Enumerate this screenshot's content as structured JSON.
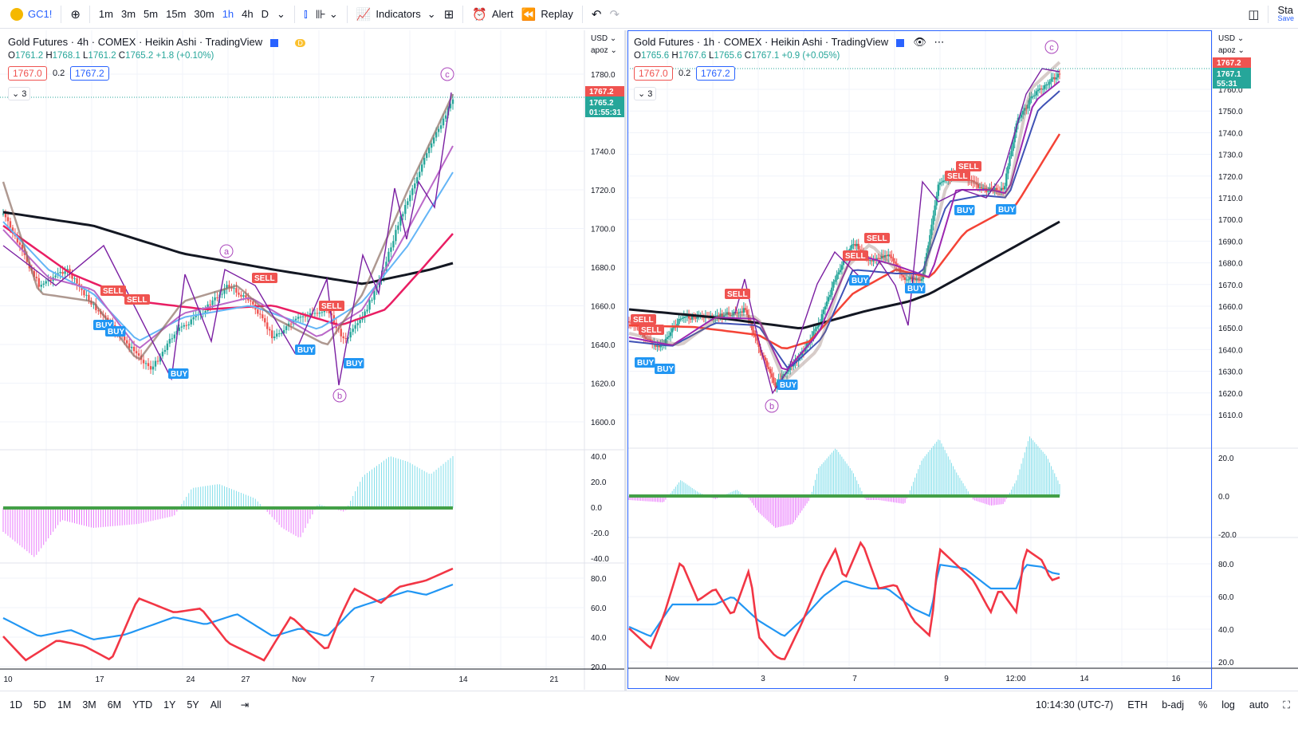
{
  "toolbar": {
    "symbol": "GC1!",
    "intervals": [
      "1m",
      "3m",
      "5m",
      "15m",
      "30m",
      "1h",
      "4h",
      "D"
    ],
    "active_interval": "1h",
    "indicators_label": "Indicators",
    "alert_label": "Alert",
    "replay_label": "Replay",
    "right_label": "Sta",
    "right_sub": "Save"
  },
  "left_chart": {
    "title": "Gold Futures · 4h · COMEX · Heikin Ashi · TradingView",
    "ohlc": {
      "o": "1761.2",
      "h": "1768.1",
      "l": "1761.2",
      "c": "1765.2",
      "chg": "+1.8 (+0.10%)"
    },
    "bid": "1767.0",
    "spread": "0.2",
    "ask": "1767.2",
    "collapse": "3",
    "currency": "USD",
    "scale_mode": "apoz",
    "price_ticks": [
      "1780.0",
      "1740.0",
      "1720.0",
      "1700.0",
      "1680.0",
      "1660.0",
      "1640.0",
      "1620.0",
      "1600.0"
    ],
    "price_tag": "1767.2",
    "last_tag": "1765.2",
    "countdown": "01:55:31",
    "osc_ticks": [
      "40.0",
      "20.0",
      "0.0",
      "-20.0",
      "-40.0"
    ],
    "rsi_ticks": [
      "80.0",
      "60.0",
      "40.0",
      "20.0"
    ],
    "time_ticks": [
      "10",
      "17",
      "24",
      "27",
      "Nov",
      "7",
      "14",
      "21"
    ],
    "wave_labels": [
      "a",
      "b",
      "c"
    ],
    "signal_labels": {
      "sell": "SELL",
      "buy": "BUY"
    }
  },
  "right_chart": {
    "title": "Gold Futures · 1h · COMEX · Heikin Ashi · TradingView",
    "ohlc": {
      "o": "1765.6",
      "h": "1767.6",
      "l": "1765.6",
      "c": "1767.1",
      "chg": "+0.9 (+0.05%)"
    },
    "bid": "1767.0",
    "spread": "0.2",
    "ask": "1767.2",
    "collapse": "3",
    "currency": "USD",
    "scale_mode": "apoz",
    "price_ticks": [
      "1760.0",
      "1750.0",
      "1740.0",
      "1730.0",
      "1720.0",
      "1710.0",
      "1700.0",
      "1690.0",
      "1680.0",
      "1670.0",
      "1660.0",
      "1650.0",
      "1640.0",
      "1630.0",
      "1620.0",
      "1610.0"
    ],
    "price_tag": "1767.2",
    "last_tag": "1767.1",
    "countdown": "55:31",
    "osc_ticks": [
      "20.0",
      "0.0",
      "-20.0"
    ],
    "rsi_ticks": [
      "80.0",
      "60.0",
      "40.0",
      "20.0"
    ],
    "time_ticks": [
      "Nov",
      "3",
      "7",
      "9",
      "12:00",
      "14",
      "16"
    ],
    "wave_labels": [
      "b",
      "c"
    ],
    "signal_labels": {
      "sell": "SELL",
      "buy": "BUY"
    }
  },
  "bottombar": {
    "ranges": [
      "1D",
      "5D",
      "1M",
      "3M",
      "6M",
      "YTD",
      "1Y",
      "5Y",
      "All"
    ],
    "time": "10:14:30 (UTC-7)",
    "session": "ETH",
    "adj": "b-adj",
    "pct": "%",
    "log": "log",
    "auto": "auto"
  },
  "colors": {
    "up": "#26a69a",
    "down": "#ef5350",
    "accent": "#2962ff",
    "purple": "#9c27b0"
  }
}
